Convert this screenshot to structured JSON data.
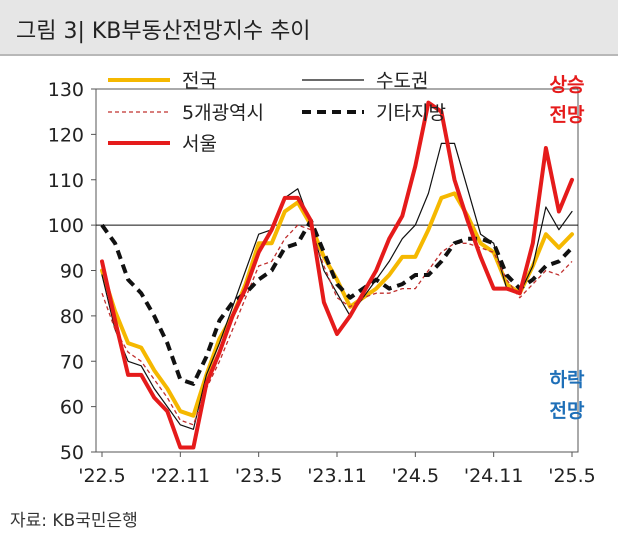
{
  "header": {
    "title": "그림 3| KB부동산전망지수 추이"
  },
  "footer": {
    "source": "자료: KB국민은행"
  },
  "annotations": {
    "up": [
      "상승",
      "전망"
    ],
    "down": [
      "하락",
      "전망"
    ]
  },
  "colors": {
    "national": "#f5b800",
    "capital": "#111111",
    "metro5": "#c0302f",
    "other": "#111111",
    "seoul": "#e51b1b",
    "up": "#e51b1b",
    "down": "#1e6fb8"
  },
  "chart_data": {
    "type": "line",
    "title": "",
    "xlabel": "",
    "ylabel": "",
    "ylim": [
      50,
      130
    ],
    "yticks": [
      50,
      60,
      70,
      80,
      90,
      100,
      110,
      120,
      130
    ],
    "x_tick_labels": [
      "'22.5",
      "'22.11",
      "'23.5",
      "'23.11",
      "'24.5",
      "'24.11",
      "'25.5"
    ],
    "x": [
      "22.5",
      "22.6",
      "22.7",
      "22.8",
      "22.9",
      "22.10",
      "22.11",
      "22.12",
      "23.1",
      "23.2",
      "23.3",
      "23.4",
      "23.5",
      "23.6",
      "23.7",
      "23.8",
      "23.9",
      "23.10",
      "23.11",
      "23.12",
      "24.1",
      "24.2",
      "24.3",
      "24.4",
      "24.5",
      "24.6",
      "24.7",
      "24.8",
      "24.9",
      "24.10",
      "24.11",
      "24.12",
      "25.1",
      "25.2",
      "25.3",
      "25.4",
      "25.5"
    ],
    "reference_line": 100,
    "legend_position": "top",
    "series": [
      {
        "name": "전국",
        "style": "solid-thick",
        "values": [
          90,
          81,
          74,
          73,
          68,
          64,
          59,
          58,
          67,
          75,
          80,
          87,
          96,
          96,
          103,
          105,
          100,
          93,
          88,
          82,
          84,
          86,
          89,
          93,
          93,
          99,
          106,
          107,
          102,
          96,
          94,
          87,
          85,
          91,
          98,
          95,
          98
        ]
      },
      {
        "name": "수도권",
        "style": "solid-thin",
        "values": [
          89,
          77,
          70,
          69,
          64,
          60,
          56,
          55,
          67,
          74,
          82,
          90,
          98,
          99,
          106,
          108,
          100,
          90,
          85,
          80,
          84,
          88,
          92,
          97,
          100,
          107,
          118,
          118,
          108,
          98,
          96,
          86,
          85,
          91,
          104,
          99,
          103
        ]
      },
      {
        "name": "5개광역시",
        "style": "dashed-thin",
        "values": [
          85,
          77,
          72,
          70,
          66,
          62,
          57,
          56,
          64,
          70,
          77,
          84,
          91,
          92,
          97,
          100,
          99,
          91,
          84,
          82,
          84,
          85,
          85,
          86,
          86,
          90,
          94,
          96,
          96,
          95,
          94,
          88,
          84,
          87,
          90,
          89,
          92
        ]
      },
      {
        "name": "기타지방",
        "style": "dashed-thick",
        "values": [
          100,
          96,
          88,
          85,
          80,
          74,
          66,
          65,
          71,
          79,
          83,
          85,
          88,
          90,
          95,
          96,
          101,
          94,
          87,
          84,
          86,
          88,
          86,
          87,
          89,
          89,
          92,
          96,
          97,
          97,
          96,
          89,
          86,
          88,
          91,
          92,
          95
        ]
      },
      {
        "name": "서울",
        "style": "solid-thicker",
        "values": [
          92,
          79,
          67,
          67,
          62,
          59,
          51,
          51,
          65,
          72,
          80,
          86,
          94,
          99,
          106,
          106,
          101,
          83,
          76,
          80,
          85,
          90,
          97,
          102,
          113,
          127,
          125,
          110,
          101,
          93,
          86,
          86,
          85,
          96,
          117,
          103,
          110
        ]
      }
    ]
  }
}
